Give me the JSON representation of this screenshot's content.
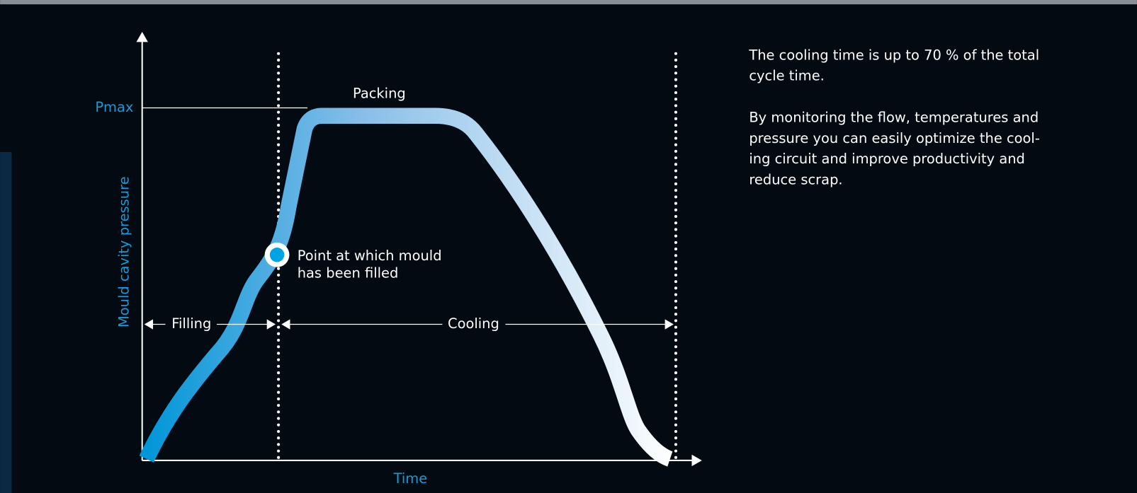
{
  "diagram": {
    "y_axis_label": "Mould cavity pressure",
    "x_axis_label": "Time",
    "pmax_label": "Pmax",
    "phases": {
      "packing": "Packing",
      "filling": "Filling",
      "cooling": "Cooling"
    },
    "annotation": [
      "Point at which mould",
      "has been filled"
    ]
  },
  "text": {
    "paragraphs": [
      [
        "The cooling time is up to 70 % of the total",
        "cycle time."
      ],
      [
        "By monitoring the flow, temperatures and",
        "pressure you can easily optimize the cool-",
        "ing circuit and improve productivity and",
        "reduce scrap."
      ]
    ]
  }
}
